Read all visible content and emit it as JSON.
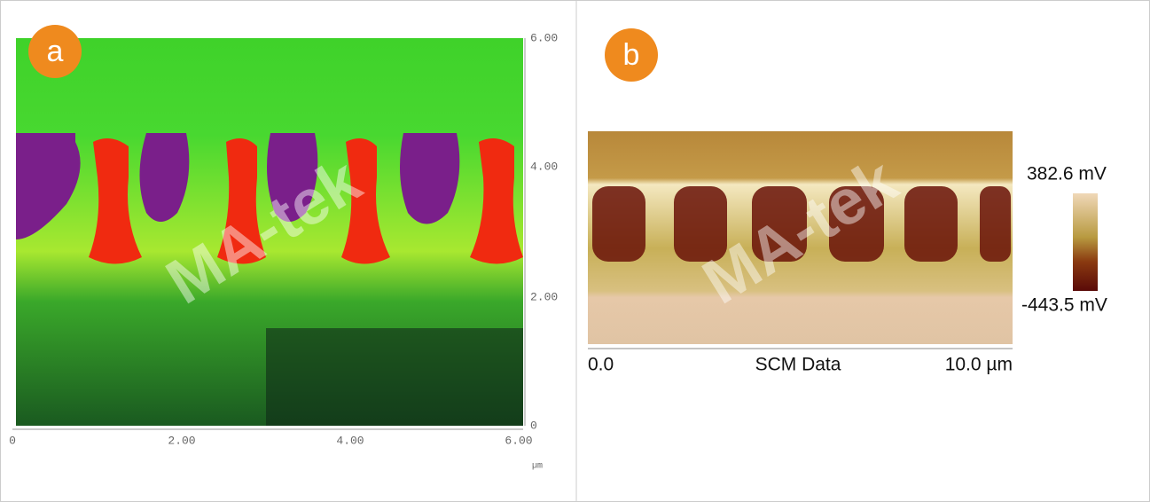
{
  "panel_a": {
    "badge": "a",
    "y_ticks": [
      "6.00",
      "4.00",
      "2.00",
      "0"
    ],
    "x_ticks": [
      "0",
      "2.00",
      "4.00",
      "6.00"
    ],
    "unit": "µm",
    "watermark": "MA-tek"
  },
  "panel_b": {
    "badge": "b",
    "x_start": "0.0",
    "caption": "SCM Data",
    "x_end": "10.0 µm",
    "colorbar_max": "382.6 mV",
    "colorbar_min": "-443.5 mV",
    "watermark": "MA-tek"
  }
}
